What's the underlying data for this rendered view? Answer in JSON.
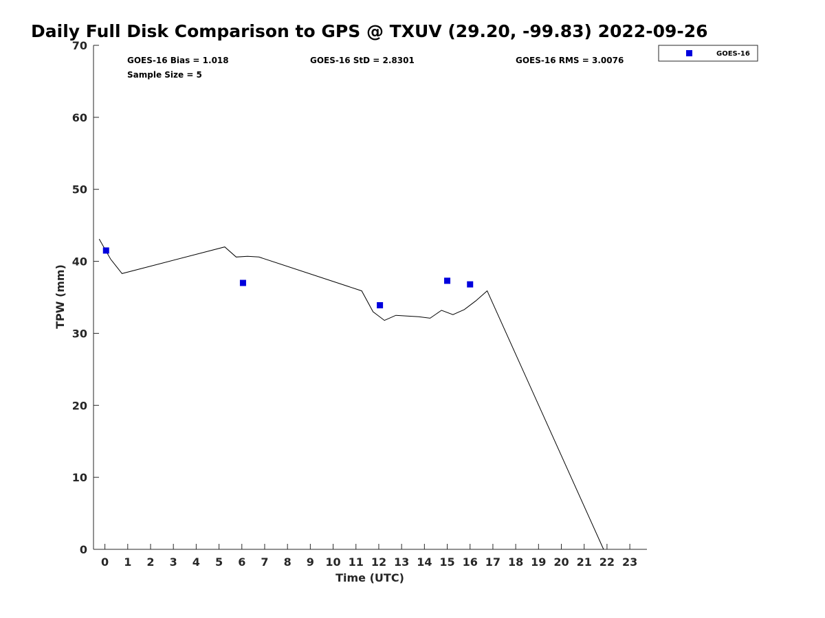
{
  "chart_data": {
    "type": "scatter",
    "title": "Daily Full Disk Comparison to GPS @ TXUV (29.20, -99.83) 2022-09-26",
    "xlabel": "Time (UTC)",
    "ylabel": "TPW (mm)",
    "xlim": [
      -0.5,
      23.75
    ],
    "ylim": [
      0,
      70
    ],
    "x_ticks": [
      "0",
      "1",
      "2",
      "3",
      "4",
      "5",
      "6",
      "7",
      "8",
      "9",
      "10",
      "11",
      "12",
      "13",
      "14",
      "15",
      "16",
      "17",
      "18",
      "19",
      "20",
      "21",
      "22",
      "23"
    ],
    "y_ticks": [
      "0",
      "10",
      "20",
      "30",
      "40",
      "50",
      "60",
      "70"
    ],
    "grid": false,
    "legend_position": "outside top-right",
    "stats": {
      "bias": "GOES-16 Bias = 1.018",
      "std": "GOES-16 StD = 2.8301",
      "rms": "GOES-16 RMS = 3.0076",
      "sample": "Sample Size = 5"
    },
    "series": [
      {
        "name": "GOES-16",
        "kind": "scatter",
        "marker": "square",
        "color": "#0000dd",
        "x": [
          0.05,
          6.05,
          12.05,
          15.0,
          16.0
        ],
        "y": [
          41.5,
          37.0,
          33.9,
          37.3,
          36.8
        ]
      },
      {
        "kind": "line",
        "color": "#000000",
        "x": [
          -0.25,
          0.25,
          0.75,
          5.25,
          5.75,
          6.25,
          6.75,
          11.25,
          11.75,
          12.25,
          12.75,
          13.25,
          13.75,
          14.25,
          14.75,
          15.25,
          15.75,
          16.25,
          16.75,
          21.85
        ],
        "y": [
          43.1,
          40.3,
          38.3,
          42.0,
          40.6,
          40.7,
          40.6,
          35.9,
          33.0,
          31.8,
          32.5,
          32.4,
          32.3,
          32.1,
          33.2,
          32.6,
          33.3,
          34.5,
          35.9,
          0
        ]
      }
    ]
  }
}
